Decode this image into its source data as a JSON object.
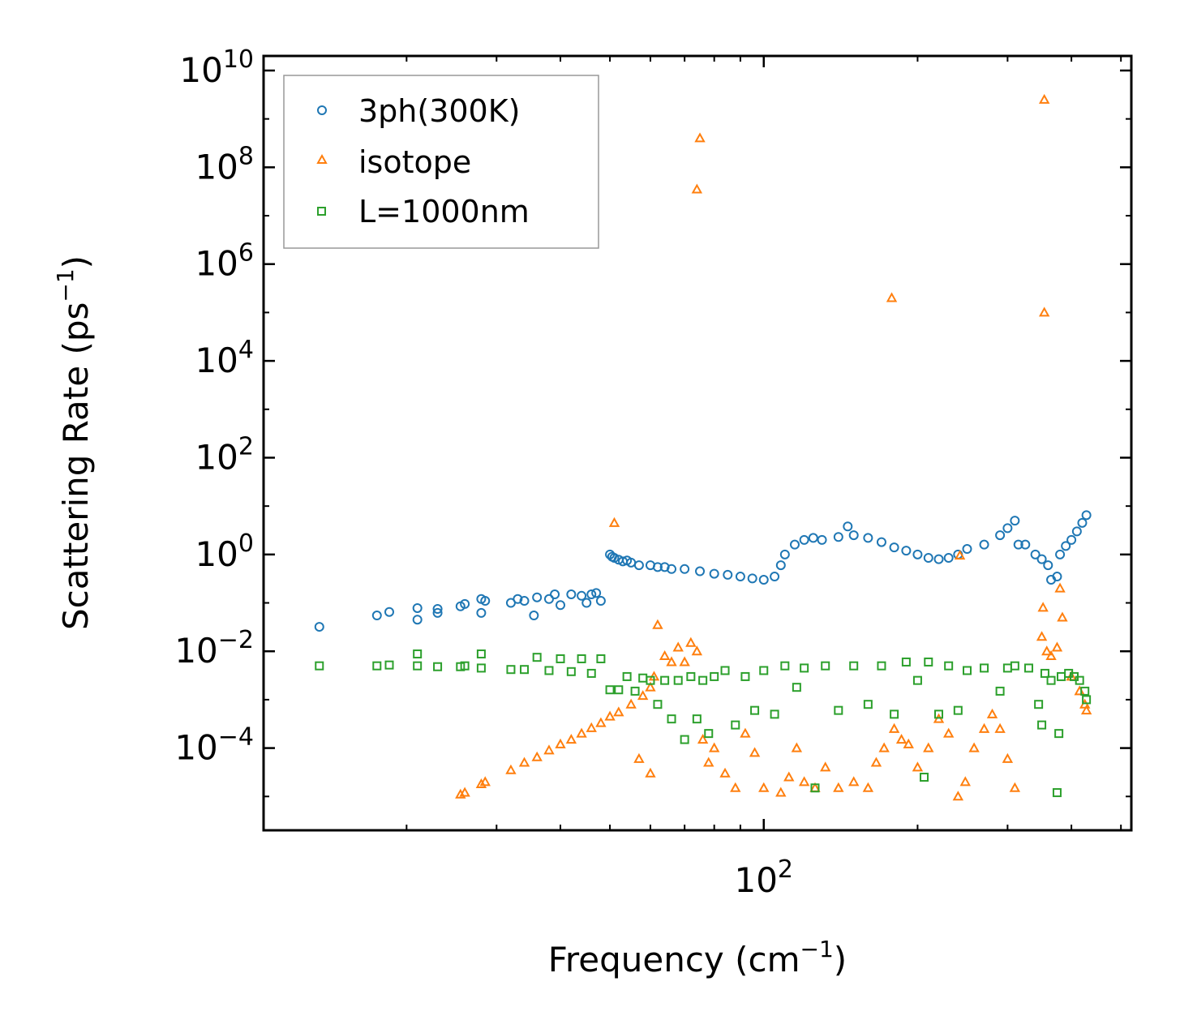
{
  "colors": {
    "3ph": "#1f77b4",
    "isotope": "#ff7f0e",
    "boundary": "#2ca02c",
    "axis": "#000000",
    "legend_border": "#999999"
  },
  "chart_data": {
    "type": "scatter",
    "title": "",
    "xlabel": {
      "main": "Frequency (cm",
      "sup": "−1",
      "tail": ")"
    },
    "ylabel": {
      "main": "Scattering Rate (ps",
      "sup": "−1",
      "tail": ")"
    },
    "xscale": "log",
    "yscale": "log",
    "xlim": [
      10.5,
      524
    ],
    "ylim": [
      2e-06,
      20000000000.0
    ],
    "x_ticks": [
      {
        "value": 100,
        "base": "10",
        "exp": "2"
      }
    ],
    "y_ticks": [
      {
        "value": 0.0001,
        "base": "10",
        "exp": "−4"
      },
      {
        "value": 0.01,
        "base": "10",
        "exp": "−2"
      },
      {
        "value": 1,
        "base": "10",
        "exp": "0"
      },
      {
        "value": 100,
        "base": "10",
        "exp": "2"
      },
      {
        "value": 10000.0,
        "base": "10",
        "exp": "4"
      },
      {
        "value": 1000000.0,
        "base": "10",
        "exp": "6"
      },
      {
        "value": 100000000.0,
        "base": "10",
        "exp": "8"
      },
      {
        "value": 10000000000.0,
        "base": "10",
        "exp": "10"
      }
    ],
    "legend_position": "top-left",
    "grid": false,
    "series": [
      {
        "name": "3ph(300K)",
        "marker": "circle",
        "color_key": "3ph",
        "points": [
          [
            13.5,
            0.032
          ],
          [
            17.5,
            0.055
          ],
          [
            18.5,
            0.065
          ],
          [
            21.0,
            0.045
          ],
          [
            21.0,
            0.078
          ],
          [
            23.0,
            0.062
          ],
          [
            23.0,
            0.075
          ],
          [
            25.5,
            0.085
          ],
          [
            26.0,
            0.095
          ],
          [
            28.0,
            0.062
          ],
          [
            28.0,
            0.12
          ],
          [
            28.5,
            0.11
          ],
          [
            32.0,
            0.1
          ],
          [
            33.0,
            0.12
          ],
          [
            34.0,
            0.11
          ],
          [
            35.5,
            0.055
          ],
          [
            36.0,
            0.13
          ],
          [
            38.0,
            0.12
          ],
          [
            39.0,
            0.15
          ],
          [
            40.0,
            0.09
          ],
          [
            42.0,
            0.15
          ],
          [
            44.0,
            0.14
          ],
          [
            45.0,
            0.1
          ],
          [
            46.0,
            0.15
          ],
          [
            47.0,
            0.16
          ],
          [
            48.0,
            0.11
          ],
          [
            50.0,
            1.0
          ],
          [
            50.5,
            0.9
          ],
          [
            51.0,
            0.85
          ],
          [
            52.0,
            0.78
          ],
          [
            53.0,
            0.72
          ],
          [
            54.0,
            0.75
          ],
          [
            55.0,
            0.68
          ],
          [
            57.0,
            0.6
          ],
          [
            60.0,
            0.6
          ],
          [
            62.0,
            0.55
          ],
          [
            64.0,
            0.55
          ],
          [
            66.0,
            0.5
          ],
          [
            70.0,
            0.5
          ],
          [
            75.0,
            0.45
          ],
          [
            80.0,
            0.4
          ],
          [
            85.0,
            0.38
          ],
          [
            90.0,
            0.35
          ],
          [
            95.0,
            0.32
          ],
          [
            100.0,
            0.3
          ],
          [
            105.0,
            0.35
          ],
          [
            108.0,
            0.6
          ],
          [
            110.0,
            1.0
          ],
          [
            115.0,
            1.6
          ],
          [
            120.0,
            2.0
          ],
          [
            125.0,
            2.2
          ],
          [
            130.0,
            2.0
          ],
          [
            140.0,
            2.3
          ],
          [
            146.0,
            3.8
          ],
          [
            150.0,
            2.5
          ],
          [
            160.0,
            2.2
          ],
          [
            170.0,
            1.8
          ],
          [
            180.0,
            1.4
          ],
          [
            190.0,
            1.2
          ],
          [
            200.0,
            1.0
          ],
          [
            210.0,
            0.85
          ],
          [
            220.0,
            0.8
          ],
          [
            230.0,
            0.85
          ],
          [
            240.0,
            1.0
          ],
          [
            250.0,
            1.3
          ],
          [
            270.0,
            1.6
          ],
          [
            290.0,
            2.5
          ],
          [
            300.0,
            3.5
          ],
          [
            310.0,
            5.0
          ],
          [
            315.0,
            1.6
          ],
          [
            325.0,
            1.6
          ],
          [
            340.0,
            1.0
          ],
          [
            350.0,
            0.8
          ],
          [
            360.0,
            0.6
          ],
          [
            365.0,
            0.3
          ],
          [
            375.0,
            0.35
          ],
          [
            380.0,
            1.0
          ],
          [
            390.0,
            1.5
          ],
          [
            400.0,
            2.0
          ],
          [
            410.0,
            3.0
          ],
          [
            420.0,
            4.5
          ],
          [
            428.0,
            6.5
          ]
        ]
      },
      {
        "name": "isotope",
        "marker": "triangle",
        "color_key": "isotope",
        "points": [
          [
            25.5,
            1.1e-05
          ],
          [
            26.0,
            1.2e-05
          ],
          [
            28.0,
            1.8e-05
          ],
          [
            28.5,
            2e-05
          ],
          [
            32.0,
            3.5e-05
          ],
          [
            34.0,
            5e-05
          ],
          [
            36.0,
            6.5e-05
          ],
          [
            38.0,
            9e-05
          ],
          [
            40.0,
            0.00012
          ],
          [
            42.0,
            0.00015
          ],
          [
            44.0,
            0.0002
          ],
          [
            46.0,
            0.00026
          ],
          [
            48.0,
            0.00033
          ],
          [
            50.0,
            0.00045
          ],
          [
            51.0,
            4.5
          ],
          [
            52.0,
            0.00055
          ],
          [
            55.0,
            0.0008
          ],
          [
            57.0,
            6e-05
          ],
          [
            58.0,
            0.0012
          ],
          [
            60.0,
            0.0018
          ],
          [
            60.0,
            3e-05
          ],
          [
            61.0,
            0.003
          ],
          [
            62.0,
            0.035
          ],
          [
            64.0,
            0.008
          ],
          [
            66.0,
            0.006
          ],
          [
            68.0,
            0.012
          ],
          [
            70.0,
            0.006
          ],
          [
            72.0,
            0.015
          ],
          [
            74.0,
            0.01
          ],
          [
            75.0,
            400000000.0
          ],
          [
            74.0,
            35000000.0
          ],
          [
            76.0,
            0.00015
          ],
          [
            78.0,
            5e-05
          ],
          [
            80.0,
            0.0001
          ],
          [
            84.0,
            3e-05
          ],
          [
            88.0,
            1.5e-05
          ],
          [
            92.0,
            0.0002
          ],
          [
            96.0,
            8e-05
          ],
          [
            100.0,
            1.5e-05
          ],
          [
            108.0,
            1.2e-05
          ],
          [
            112.0,
            2.5e-05
          ],
          [
            116.0,
            0.0001
          ],
          [
            120.0,
            2e-05
          ],
          [
            126.0,
            1.5e-05
          ],
          [
            132.0,
            4e-05
          ],
          [
            140.0,
            1.5e-05
          ],
          [
            150.0,
            2e-05
          ],
          [
            160.0,
            1.5e-05
          ],
          [
            166.0,
            5e-05
          ],
          [
            172.0,
            0.0001
          ],
          [
            178.0,
            200000.0
          ],
          [
            180.0,
            0.00025
          ],
          [
            186.0,
            0.00015
          ],
          [
            192.0,
            0.00012
          ],
          [
            200.0,
            4e-05
          ],
          [
            210.0,
            0.0001
          ],
          [
            220.0,
            0.0004
          ],
          [
            230.0,
            0.0002
          ],
          [
            240.0,
            1e-05
          ],
          [
            242.0,
            0.95
          ],
          [
            248.0,
            2e-05
          ],
          [
            258.0,
            0.0001
          ],
          [
            270.0,
            0.00025
          ],
          [
            280.0,
            0.0005
          ],
          [
            290.0,
            0.00025
          ],
          [
            300.0,
            6e-05
          ],
          [
            310.0,
            1.5e-05
          ],
          [
            350.0,
            0.02
          ],
          [
            352.0,
            0.08
          ],
          [
            354.0,
            2500000000.0
          ],
          [
            354.0,
            100000.0
          ],
          [
            358.0,
            0.01
          ],
          [
            365.0,
            0.008
          ],
          [
            375.0,
            0.012
          ],
          [
            380.0,
            0.2
          ],
          [
            384.0,
            0.05
          ],
          [
            400.0,
            0.003
          ],
          [
            415.0,
            0.0015
          ],
          [
            425.0,
            0.0008
          ],
          [
            428.0,
            0.0006
          ]
        ]
      },
      {
        "name": "L=1000nm",
        "marker": "square",
        "color_key": "boundary",
        "points": [
          [
            13.5,
            0.005
          ],
          [
            17.5,
            0.005
          ],
          [
            18.5,
            0.0052
          ],
          [
            21.0,
            0.0088
          ],
          [
            21.0,
            0.005
          ],
          [
            23.0,
            0.0048
          ],
          [
            25.5,
            0.0048
          ],
          [
            26.0,
            0.005
          ],
          [
            28.0,
            0.0088
          ],
          [
            28.0,
            0.0045
          ],
          [
            32.0,
            0.0042
          ],
          [
            34.0,
            0.0042
          ],
          [
            36.0,
            0.0075
          ],
          [
            38.0,
            0.004
          ],
          [
            40.0,
            0.007
          ],
          [
            42.0,
            0.0038
          ],
          [
            44.0,
            0.007
          ],
          [
            46.0,
            0.0035
          ],
          [
            48.0,
            0.007
          ],
          [
            50.0,
            0.0016
          ],
          [
            52.0,
            0.0016
          ],
          [
            54.0,
            0.003
          ],
          [
            56.0,
            0.0015
          ],
          [
            58.0,
            0.0028
          ],
          [
            60.0,
            0.0025
          ],
          [
            62.0,
            0.0008
          ],
          [
            64.0,
            0.0025
          ],
          [
            66.0,
            0.0004
          ],
          [
            68.0,
            0.0025
          ],
          [
            70.0,
            0.00015
          ],
          [
            72.0,
            0.003
          ],
          [
            74.0,
            0.0004
          ],
          [
            76.0,
            0.0025
          ],
          [
            78.0,
            0.0002
          ],
          [
            80.0,
            0.003
          ],
          [
            84.0,
            0.004
          ],
          [
            88.0,
            0.0003
          ],
          [
            92.0,
            0.003
          ],
          [
            96.0,
            0.0006
          ],
          [
            100.0,
            0.004
          ],
          [
            105.0,
            0.0005
          ],
          [
            110.0,
            0.005
          ],
          [
            116.0,
            0.0018
          ],
          [
            120.0,
            0.0045
          ],
          [
            126.0,
            1.5e-05
          ],
          [
            132.0,
            0.005
          ],
          [
            140.0,
            0.0006
          ],
          [
            150.0,
            0.005
          ],
          [
            160.0,
            0.0008
          ],
          [
            170.0,
            0.005
          ],
          [
            180.0,
            0.0005
          ],
          [
            190.0,
            0.006
          ],
          [
            200.0,
            0.0025
          ],
          [
            206.0,
            2.5e-05
          ],
          [
            210.0,
            0.006
          ],
          [
            220.0,
            0.0005
          ],
          [
            230.0,
            0.005
          ],
          [
            240.0,
            0.0006
          ],
          [
            250.0,
            0.004
          ],
          [
            270.0,
            0.0045
          ],
          [
            290.0,
            0.0015
          ],
          [
            300.0,
            0.0045
          ],
          [
            310.0,
            0.005
          ],
          [
            330.0,
            0.0045
          ],
          [
            345.0,
            0.0008
          ],
          [
            350.0,
            0.0003
          ],
          [
            355.0,
            0.0035
          ],
          [
            365.0,
            0.0025
          ],
          [
            375.0,
            1.2e-05
          ],
          [
            378.0,
            0.0002
          ],
          [
            382.0,
            0.003
          ],
          [
            395.0,
            0.0035
          ],
          [
            405.0,
            0.003
          ],
          [
            415.0,
            0.0025
          ],
          [
            425.0,
            0.0015
          ],
          [
            428.0,
            0.001
          ]
        ]
      }
    ]
  }
}
